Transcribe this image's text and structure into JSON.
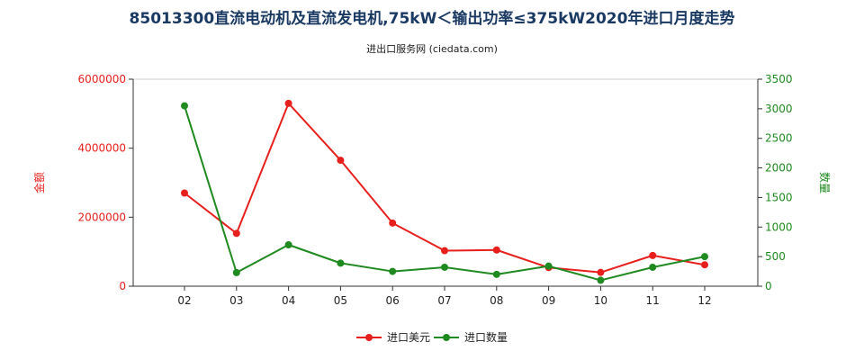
{
  "chart_data": {
    "type": "line",
    "title": "85013300直流电动机及直流发电机,75kW＜输出功率≤375kW2020年进口月度走势",
    "subtitle": "进出口服务网 (ciedata.com)",
    "categories": [
      "02",
      "03",
      "04",
      "05",
      "06",
      "07",
      "08",
      "09",
      "10",
      "11",
      "12"
    ],
    "y_left": {
      "label": "金额",
      "ylim": [
        0,
        6000000
      ],
      "ticks": [
        0,
        2000000,
        4000000,
        6000000
      ],
      "tick_labels": [
        "0",
        "2000000",
        "4000000",
        "6000000"
      ]
    },
    "y_right": {
      "label": "数量",
      "ylim": [
        0,
        3500
      ],
      "ticks": [
        0,
        500,
        1000,
        1500,
        2000,
        2500,
        3000,
        3500
      ],
      "tick_labels": [
        "0",
        "500",
        "1000",
        "1500",
        "2000",
        "2500",
        "3000",
        "3500"
      ]
    },
    "series": [
      {
        "name": "进口美元",
        "axis": "left",
        "color": "#e8201d",
        "values": [
          2700000,
          1530000,
          5300000,
          3650000,
          1830000,
          1030000,
          1050000,
          540000,
          400000,
          890000,
          620000
        ]
      },
      {
        "name": "进口数量",
        "axis": "right",
        "color": "#1f8a1f",
        "values": [
          3050,
          230,
          700,
          390,
          250,
          320,
          200,
          340,
          100,
          320,
          500
        ]
      }
    ],
    "grid": false,
    "legend": "bottom-center"
  }
}
